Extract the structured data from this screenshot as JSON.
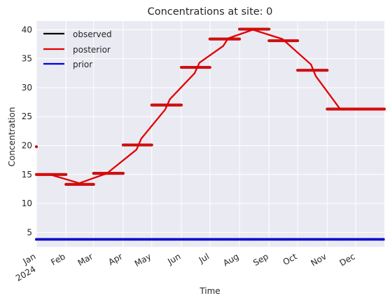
{
  "chart_data": {
    "type": "line",
    "title": "Concentrations at site: 0",
    "xlabel": "Time",
    "ylabel": "Concentration",
    "xlim": [
      "2024-01-01",
      "2024-12-31"
    ],
    "ylim": [
      2.5,
      41.5
    ],
    "yticks": [
      5,
      10,
      15,
      20,
      25,
      30,
      35,
      40
    ],
    "xtick_labels": [
      {
        "date": "2024-01-01",
        "label": "Jan",
        "sublabel": "2024"
      },
      {
        "date": "2024-02-01",
        "label": "Feb"
      },
      {
        "date": "2024-03-01",
        "label": "Mar"
      },
      {
        "date": "2024-04-01",
        "label": "Apr"
      },
      {
        "date": "2024-05-01",
        "label": "May"
      },
      {
        "date": "2024-06-01",
        "label": "Jun"
      },
      {
        "date": "2024-07-01",
        "label": "Jul"
      },
      {
        "date": "2024-08-01",
        "label": "Aug"
      },
      {
        "date": "2024-09-01",
        "label": "Sep"
      },
      {
        "date": "2024-10-01",
        "label": "Oct"
      },
      {
        "date": "2024-11-01",
        "label": "Nov"
      },
      {
        "date": "2024-12-01",
        "label": "Dec"
      }
    ],
    "grid": true,
    "legend_position": "top-left",
    "series": [
      {
        "name": "observed",
        "color": "#000000",
        "style": "line",
        "values": []
      },
      {
        "name": "posterior",
        "color": "#e00000",
        "style": "line",
        "points": [
          [
            "2024-01-01",
            15.0
          ],
          [
            "2024-01-15",
            15.0
          ],
          [
            "2024-02-15",
            13.5
          ],
          [
            "2024-03-15",
            15.2
          ],
          [
            "2024-04-15",
            19.3
          ],
          [
            "2024-04-20",
            21.2
          ],
          [
            "2024-05-15",
            26.2
          ],
          [
            "2024-05-20",
            28.0
          ],
          [
            "2024-06-15",
            32.5
          ],
          [
            "2024-06-20",
            34.3
          ],
          [
            "2024-07-15",
            37.2
          ],
          [
            "2024-07-20",
            38.5
          ],
          [
            "2024-08-15",
            40.0
          ],
          [
            "2024-09-15",
            38.4
          ],
          [
            "2024-10-15",
            34.0
          ],
          [
            "2024-10-20",
            32.0
          ],
          [
            "2024-11-15",
            26.2
          ],
          [
            "2024-12-31",
            26.2
          ]
        ]
      },
      {
        "name": "prior",
        "color": "#0000e0",
        "style": "line",
        "points": [
          [
            "2024-01-01",
            3.8
          ],
          [
            "2024-12-31",
            3.8
          ]
        ]
      }
    ],
    "observed_steps": [
      {
        "start": "2024-01-01",
        "end": "2024-02-01",
        "value": 15.0
      },
      {
        "start": "2024-02-01",
        "end": "2024-03-01",
        "value": 13.3
      },
      {
        "start": "2024-03-01",
        "end": "2024-04-01",
        "value": 15.2
      },
      {
        "start": "2024-04-01",
        "end": "2024-05-01",
        "value": 20.1
      },
      {
        "start": "2024-05-01",
        "end": "2024-06-01",
        "value": 27.0
      },
      {
        "start": "2024-06-01",
        "end": "2024-07-01",
        "value": 33.5
      },
      {
        "start": "2024-07-01",
        "end": "2024-08-01",
        "value": 38.4
      },
      {
        "start": "2024-08-01",
        "end": "2024-09-01",
        "value": 40.1
      },
      {
        "start": "2024-09-01",
        "end": "2024-10-01",
        "value": 38.1
      },
      {
        "start": "2024-10-01",
        "end": "2024-11-01",
        "value": 33.0
      },
      {
        "start": "2024-11-01",
        "end": "2024-12-31",
        "value": 26.3
      }
    ],
    "outlier_points": [
      {
        "date": "2024-01-01",
        "value": 19.8
      }
    ],
    "marker_color": "#cc1010",
    "prior_marker_color": "#1010cc"
  }
}
